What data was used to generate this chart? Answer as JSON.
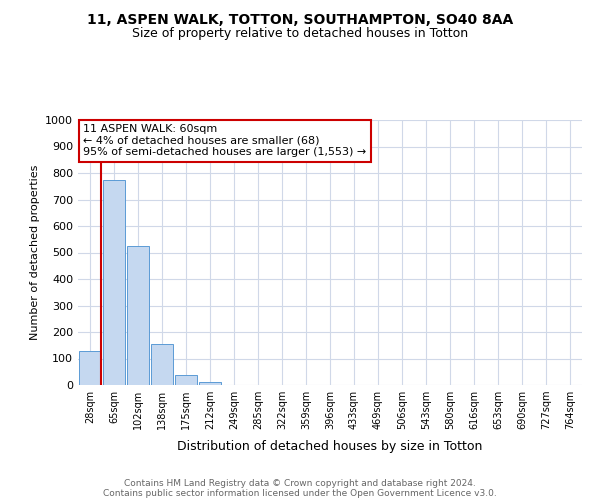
{
  "title1": "11, ASPEN WALK, TOTTON, SOUTHAMPTON, SO40 8AA",
  "title2": "Size of property relative to detached houses in Totton",
  "xlabel": "Distribution of detached houses by size in Totton",
  "ylabel": "Number of detached properties",
  "footer1": "Contains HM Land Registry data © Crown copyright and database right 2024.",
  "footer2": "Contains public sector information licensed under the Open Government Licence v3.0.",
  "bin_labels": [
    "28sqm",
    "65sqm",
    "102sqm",
    "138sqm",
    "175sqm",
    "212sqm",
    "249sqm",
    "285sqm",
    "322sqm",
    "359sqm",
    "396sqm",
    "433sqm",
    "469sqm",
    "506sqm",
    "543sqm",
    "580sqm",
    "616sqm",
    "653sqm",
    "690sqm",
    "727sqm",
    "764sqm"
  ],
  "bar_values": [
    130,
    775,
    525,
    155,
    37,
    10,
    1,
    0,
    0,
    0,
    0,
    0,
    0,
    0,
    0,
    0,
    0,
    0,
    0,
    0,
    0
  ],
  "bar_color": "#c5d8f0",
  "bar_edge_color": "#5b9bd5",
  "marker_color": "#cc0000",
  "annotation_text": "11 ASPEN WALK: 60sqm\n← 4% of detached houses are smaller (68)\n95% of semi-detached houses are larger (1,553) →",
  "annotation_box_color": "#ffffff",
  "annotation_border_color": "#cc0000",
  "ylim": [
    0,
    1000
  ],
  "yticks": [
    0,
    100,
    200,
    300,
    400,
    500,
    600,
    700,
    800,
    900,
    1000
  ],
  "bg_color": "#ffffff",
  "grid_color": "#d0d8e8",
  "title1_fontsize": 10,
  "title2_fontsize": 9,
  "ylabel_fontsize": 8,
  "xlabel_fontsize": 9,
  "tick_fontsize": 7,
  "ytick_fontsize": 8,
  "footer_fontsize": 6.5,
  "ann_fontsize": 8
}
